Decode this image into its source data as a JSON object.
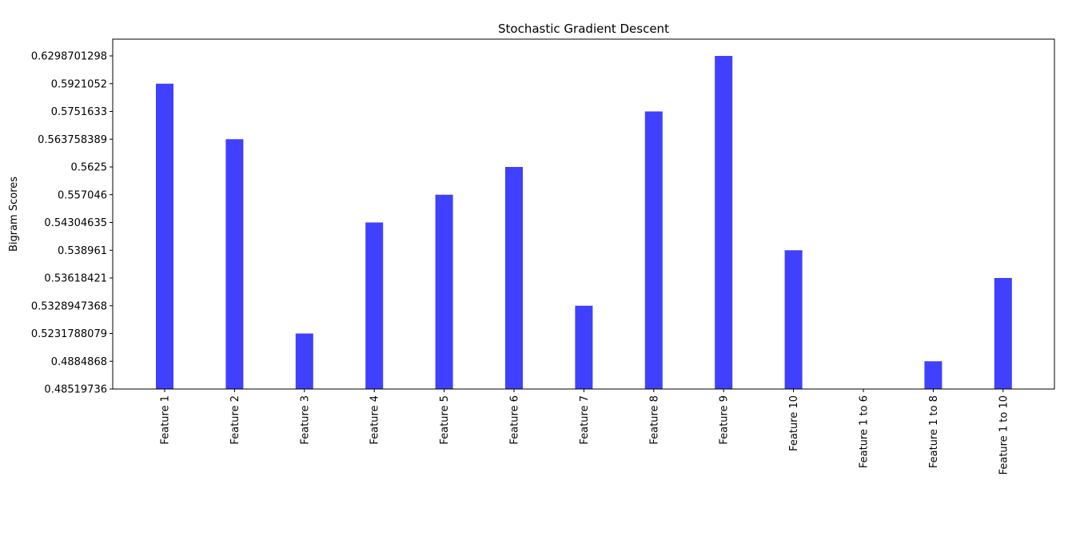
{
  "chart_data": {
    "type": "bar",
    "title": "Stochastic Gradient Descent",
    "xlabel": "",
    "ylabel": "Bigram Scores",
    "categories": [
      "Feature 1",
      "Feature 2",
      "Feature 3",
      "Feature 4",
      "Feature 5",
      "Feature 6",
      "Feature 7",
      "Feature 8",
      "Feature 9",
      "Feature 10",
      "Feature 1 to 6",
      "Feature 1 to 8",
      "Feature 1 to 10"
    ],
    "values": [
      "0.5921052",
      "0.563758389",
      "0.5231788079",
      "0.54304635",
      "0.557046",
      "0.5625",
      "0.5328947368",
      "0.5751633",
      "0.6298701298",
      "0.538961",
      "0.48519736",
      "0.4884868",
      "0.53618421"
    ],
    "ytick_labels": [
      "0.48519736",
      "0.4884868",
      "0.5231788079",
      "0.5328947368",
      "0.53618421",
      "0.538961",
      "0.54304635",
      "0.557046",
      "0.5625",
      "0.563758389",
      "0.5751633",
      "0.5921052",
      "0.6298701298"
    ],
    "y_axis_scale": "categorical (each distinct value is an evenly spaced tick)",
    "bar_color": "#4040ff",
    "grid": false,
    "legend": "none"
  }
}
